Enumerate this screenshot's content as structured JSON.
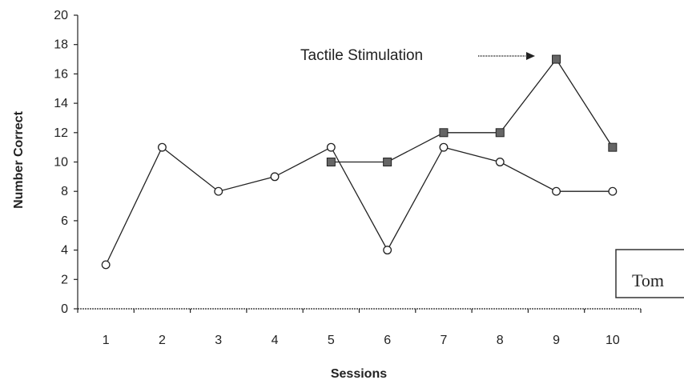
{
  "chart_data": {
    "type": "line",
    "title": "",
    "xlabel": "Sessions",
    "ylabel": "Number Correct",
    "x": [
      1,
      2,
      3,
      4,
      5,
      6,
      7,
      8,
      9,
      10
    ],
    "xlim": [
      0.5,
      10.5
    ],
    "ylim": [
      0,
      20
    ],
    "yticks": [
      0,
      2,
      4,
      6,
      8,
      10,
      12,
      14,
      16,
      18,
      20
    ],
    "grid": false,
    "series": [
      {
        "marker": "open-circle",
        "x": [
          1,
          2,
          3,
          4,
          5,
          6,
          7,
          8,
          9,
          10
        ],
        "values": [
          3,
          11,
          8,
          9,
          11,
          4,
          11,
          10,
          8,
          8
        ]
      },
      {
        "marker": "filled-square",
        "x": [
          5,
          6,
          7,
          8,
          9,
          10
        ],
        "values": [
          10,
          10,
          12,
          12,
          17,
          11
        ]
      }
    ],
    "annotations": [
      {
        "text": "Tactile Stimulation",
        "arrow": "right",
        "points_to_x": 9,
        "points_to_y": 17
      }
    ],
    "legend": {
      "text": "Tom",
      "placement": "right"
    },
    "colors": {
      "line": "#222222",
      "marker_fill": "#666666",
      "axis": "#222222"
    }
  }
}
